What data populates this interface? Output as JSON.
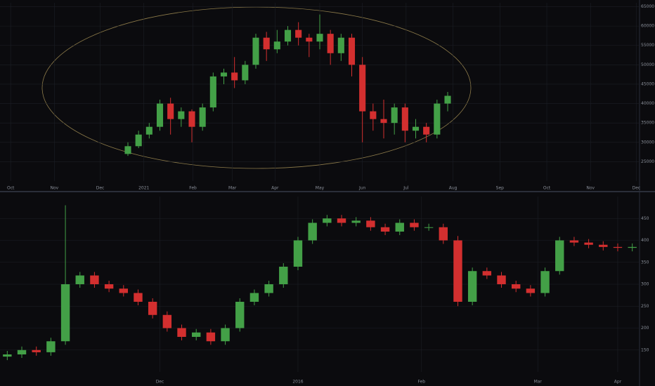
{
  "chart_data": [
    {
      "type": "candlestick",
      "up_color": "#43a047",
      "down_color": "#d32f2f",
      "grid": true,
      "x": [
        12,
        13,
        14,
        15,
        16,
        17,
        18,
        19,
        20,
        21,
        22,
        23,
        24,
        25,
        26,
        27,
        28,
        29,
        30,
        31,
        32,
        33,
        34,
        35,
        36,
        37,
        38,
        39,
        40,
        41,
        42
      ],
      "open": [
        27000,
        29000,
        32000,
        34000,
        40000,
        36000,
        38000,
        34000,
        39000,
        47000,
        48000,
        46000,
        50000,
        57000,
        54000,
        56000,
        59000,
        57000,
        56000,
        58000,
        53000,
        57000,
        50000,
        38000,
        36000,
        35000,
        39000,
        33000,
        34000,
        32000,
        40000
      ],
      "high": [
        30000,
        33000,
        35000,
        41000,
        41500,
        39000,
        38500,
        40000,
        48000,
        49000,
        52000,
        51000,
        58000,
        58500,
        59000,
        60000,
        61000,
        58000,
        63000,
        59000,
        58000,
        58000,
        52000,
        40000,
        41000,
        40000,
        40000,
        36000,
        35000,
        41000,
        43000
      ],
      "low": [
        26500,
        28500,
        31000,
        33000,
        32000,
        34000,
        30000,
        33000,
        38000,
        45000,
        44000,
        45000,
        49000,
        51000,
        53000,
        55000,
        55000,
        52000,
        54000,
        50000,
        51000,
        47000,
        30000,
        33000,
        31000,
        32000,
        30000,
        31000,
        30000,
        31000,
        38000
      ],
      "close": [
        29000,
        32000,
        34000,
        40000,
        36000,
        38000,
        34000,
        39000,
        47000,
        48000,
        46000,
        50000,
        57000,
        54000,
        56000,
        59000,
        57000,
        56000,
        58000,
        53000,
        57000,
        50000,
        38000,
        36000,
        35000,
        39000,
        33000,
        34000,
        32000,
        40000,
        42000
      ],
      "xlim": [
        0,
        60
      ],
      "xticks": [
        {
          "value": 1,
          "label": "Oct"
        },
        {
          "value": 5.1,
          "label": "Nov"
        },
        {
          "value": 9.4,
          "label": "Dec"
        },
        {
          "value": 13.5,
          "label": "2021"
        },
        {
          "value": 18.1,
          "label": "Feb"
        },
        {
          "value": 21.8,
          "label": "Mar"
        },
        {
          "value": 25.8,
          "label": "Apr"
        },
        {
          "value": 30,
          "label": "May"
        },
        {
          "value": 34,
          "label": "Jun"
        },
        {
          "value": 38.1,
          "label": "Jul"
        },
        {
          "value": 42.5,
          "label": "Aug"
        },
        {
          "value": 46.9,
          "label": "Sep"
        },
        {
          "value": 51.3,
          "label": "Oct"
        },
        {
          "value": 55.4,
          "label": "Nov"
        },
        {
          "value": 59.7,
          "label": "Dec"
        }
      ],
      "ylim": [
        20000,
        66000
      ],
      "yticks": [
        25000,
        30000,
        35000,
        40000,
        45000,
        50000,
        55000,
        60000,
        65000
      ]
    },
    {
      "type": "candlestick",
      "up_color": "#43a047",
      "down_color": "#d32f2f",
      "grid": true,
      "x": [
        0.5,
        1.5,
        2.5,
        3.5,
        4.5,
        5.5,
        6.5,
        7.5,
        8.5,
        9.5,
        10.5,
        11.5,
        12.5,
        13.5,
        14.5,
        15.5,
        16.5,
        17.5,
        18.5,
        19.5,
        20.5,
        21.5,
        22.5,
        23.5,
        24.5,
        25.5,
        26.5,
        27.5,
        28.5,
        29.5,
        30.5,
        31.5,
        32.5,
        33.5,
        34.5,
        35.5,
        36.5,
        37.5,
        38.5,
        39.5,
        40.5,
        41.5,
        42.5,
        43.5
      ],
      "open": [
        135,
        140,
        150,
        145,
        170,
        300,
        320,
        300,
        290,
        280,
        260,
        230,
        200,
        180,
        190,
        170,
        200,
        260,
        280,
        300,
        340,
        400,
        440,
        450,
        440,
        445,
        430,
        420,
        440,
        430,
        430,
        400,
        260,
        330,
        320,
        300,
        290,
        280,
        330,
        400,
        395,
        390,
        385,
        383
      ],
      "high": [
        148,
        158,
        158,
        178,
        480,
        328,
        328,
        308,
        298,
        288,
        268,
        238,
        208,
        198,
        198,
        208,
        268,
        288,
        308,
        348,
        408,
        448,
        458,
        458,
        453,
        453,
        438,
        448,
        448,
        438,
        438,
        410,
        338,
        338,
        328,
        308,
        298,
        338,
        408,
        408,
        403,
        398,
        393,
        393
      ],
      "low": [
        127,
        132,
        137,
        137,
        162,
        292,
        292,
        282,
        272,
        252,
        222,
        192,
        172,
        172,
        162,
        162,
        192,
        252,
        272,
        292,
        332,
        392,
        432,
        432,
        432,
        422,
        412,
        412,
        422,
        422,
        392,
        250,
        252,
        312,
        292,
        282,
        272,
        272,
        322,
        387,
        382,
        377,
        375,
        375
      ],
      "close": [
        140,
        150,
        145,
        170,
        300,
        320,
        300,
        290,
        280,
        260,
        230,
        200,
        180,
        190,
        170,
        200,
        260,
        280,
        300,
        340,
        400,
        440,
        450,
        440,
        445,
        430,
        420,
        440,
        430,
        430,
        400,
        260,
        330,
        320,
        300,
        290,
        280,
        330,
        400,
        395,
        390,
        385,
        383,
        385
      ],
      "xlim": [
        0,
        44
      ],
      "xticks": [
        {
          "value": 11,
          "label": "Dec"
        },
        {
          "value": 20.5,
          "label": "2016"
        },
        {
          "value": 29,
          "label": "Feb"
        },
        {
          "value": 37,
          "label": "Mar"
        },
        {
          "value": 42.5,
          "label": "Apr"
        }
      ],
      "ylim": [
        100,
        500
      ],
      "yticks": [
        150,
        200,
        250,
        300,
        350,
        400,
        450
      ]
    }
  ]
}
